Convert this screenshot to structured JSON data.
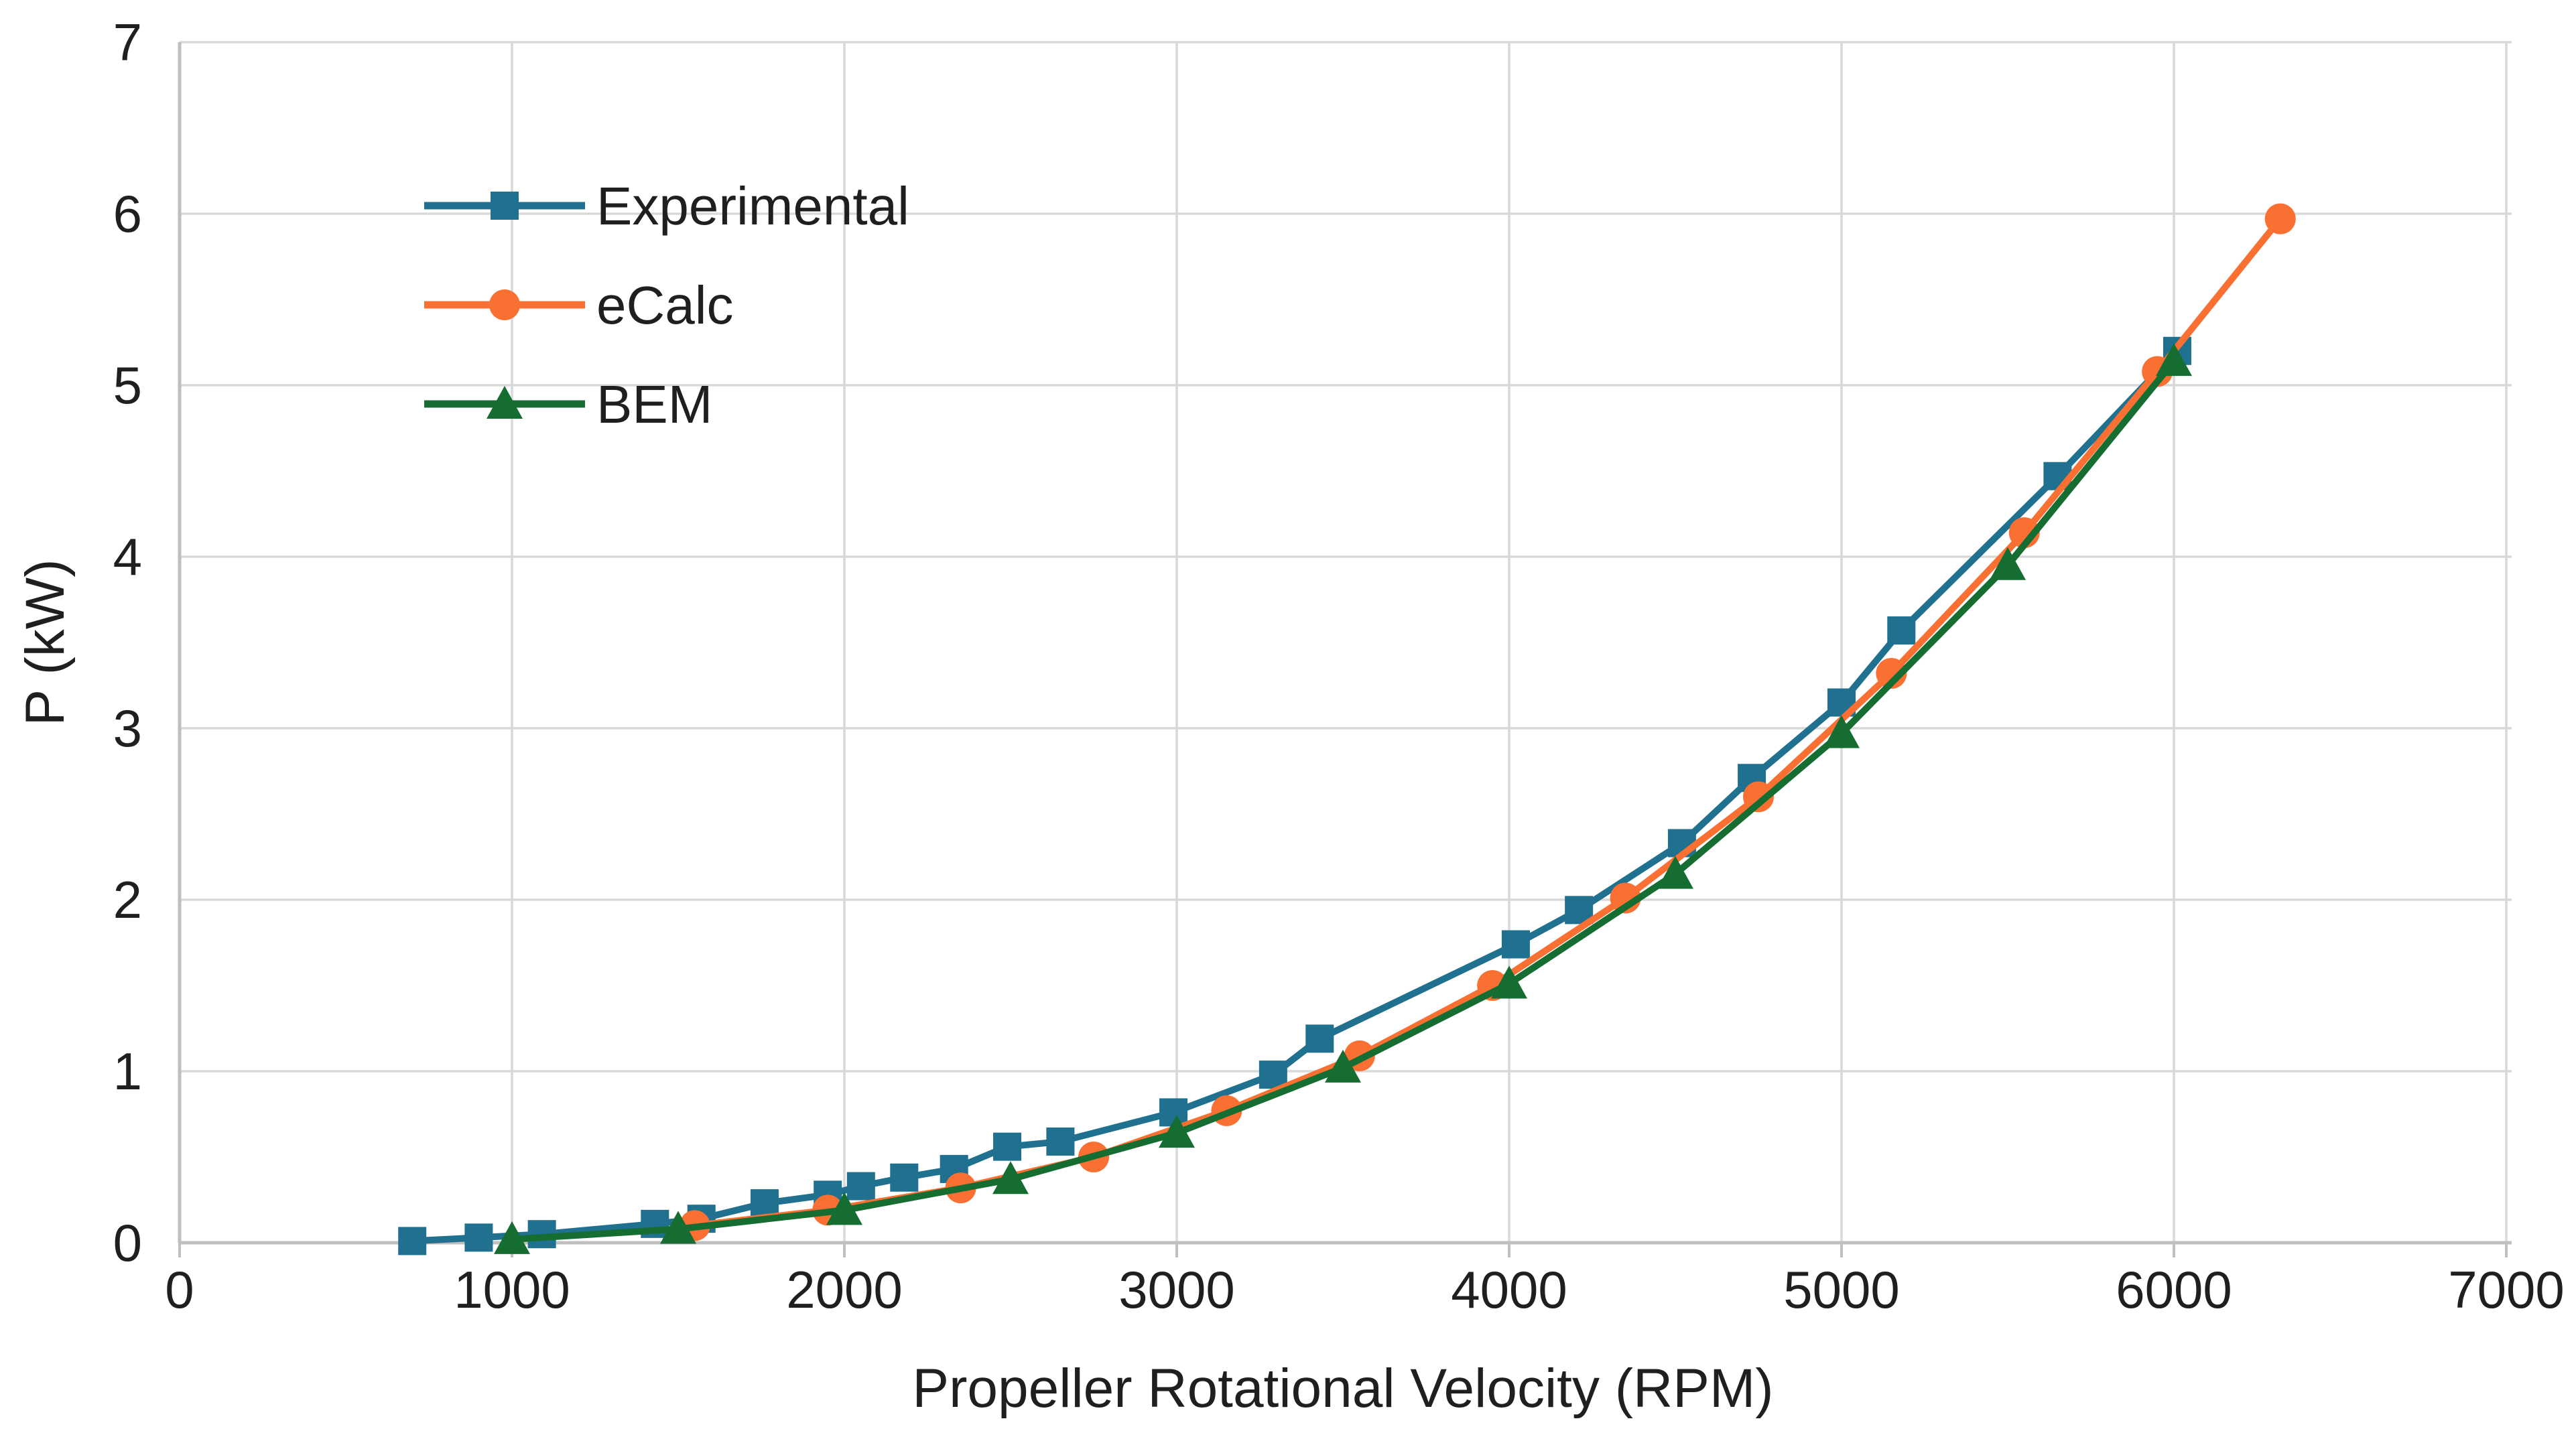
{
  "figure": {
    "background": "#ffffff",
    "text_color": "#1f1f1f",
    "grid_color": "#d9d9d9",
    "axis_color": "#bfbfbf",
    "accent_blue": "#20708f",
    "accent_orange": "#f97032",
    "accent_green": "#156d31"
  },
  "chart_data": {
    "type": "line",
    "title": "",
    "xlabel": "Propeller Rotational Velocity (RPM)",
    "ylabel": "P (kW)",
    "xlim": [
      0,
      7000
    ],
    "ylim": [
      0,
      7
    ],
    "x_ticks": [
      0,
      1000,
      2000,
      3000,
      4000,
      5000,
      6000,
      7000
    ],
    "y_ticks": [
      0,
      1,
      2,
      3,
      4,
      5,
      6,
      7
    ],
    "grid": true,
    "legend_position": "inside-top-left",
    "series": [
      {
        "name": "Experimental",
        "color": "#20708f",
        "marker": "square",
        "x": [
          700,
          900,
          1090,
          1430,
          1570,
          1760,
          1950,
          2050,
          2180,
          2330,
          2490,
          2650,
          2990,
          3290,
          3430,
          4020,
          4210,
          4520,
          4730,
          5000,
          5180,
          5650,
          6010
        ],
        "y": [
          0.01,
          0.03,
          0.05,
          0.11,
          0.14,
          0.23,
          0.28,
          0.33,
          0.38,
          0.43,
          0.56,
          0.59,
          0.76,
          0.98,
          1.19,
          1.74,
          1.94,
          2.33,
          2.71,
          3.15,
          3.57,
          4.47,
          5.2
        ]
      },
      {
        "name": "eCalc",
        "color": "#f97032",
        "marker": "circle",
        "x": [
          1550,
          1950,
          2350,
          2750,
          3150,
          3550,
          3950,
          4350,
          4750,
          5150,
          5550,
          5950,
          6320
        ],
        "y": [
          0.1,
          0.19,
          0.32,
          0.5,
          0.77,
          1.09,
          1.5,
          2.01,
          2.6,
          3.32,
          4.14,
          5.08,
          5.97
        ]
      },
      {
        "name": "BEM",
        "color": "#156d31",
        "marker": "triangle",
        "x": [
          1000,
          1500,
          2000,
          2500,
          3000,
          3500,
          4000,
          4500,
          5000,
          5500,
          6000
        ],
        "y": [
          0.02,
          0.08,
          0.19,
          0.37,
          0.64,
          1.02,
          1.51,
          2.15,
          2.97,
          3.95,
          5.14
        ]
      }
    ]
  }
}
